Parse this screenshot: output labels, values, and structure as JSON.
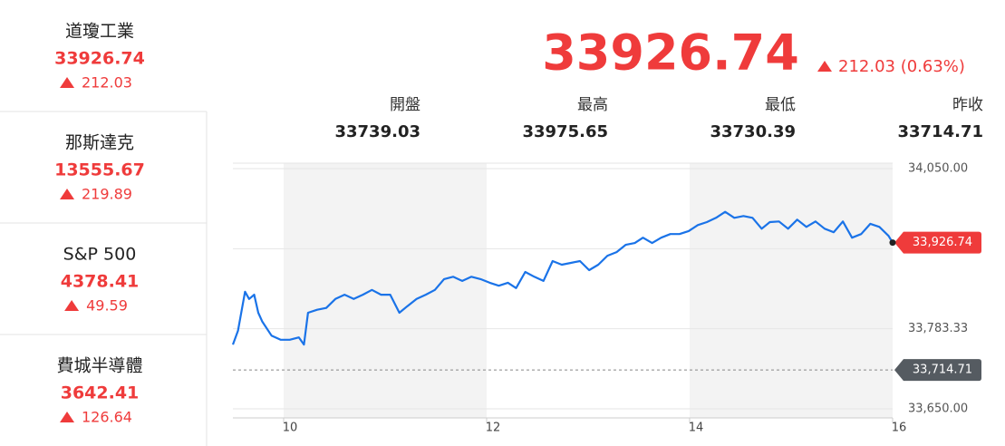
{
  "sidebar": [
    {
      "name": "道瓊工業",
      "price": "33926.74",
      "change": "212.03"
    },
    {
      "name": "那斯達克",
      "price": "13555.67",
      "change": "219.89"
    },
    {
      "name": "S&P 500",
      "price": "4378.41",
      "change": "49.59"
    },
    {
      "name": "費城半導體",
      "price": "3642.41",
      "change": "126.64"
    }
  ],
  "quote": {
    "price": "33926.74",
    "change": "212.03 (0.63%)",
    "stats": [
      {
        "label": "開盤",
        "value": "33739.03"
      },
      {
        "label": "最高",
        "value": "33975.65"
      },
      {
        "label": "最低",
        "value": "33730.39"
      },
      {
        "label": "昨收",
        "value": "33714.71"
      }
    ]
  },
  "chart_data": {
    "type": "line",
    "color": "#1a73e8",
    "x": [
      9.5,
      9.55,
      9.62,
      9.66,
      9.71,
      9.75,
      9.79,
      9.88,
      9.97,
      10.06,
      10.15,
      10.2,
      10.24,
      10.33,
      10.42,
      10.51,
      10.6,
      10.69,
      10.78,
      10.87,
      10.96,
      11.05,
      11.14,
      11.22,
      11.31,
      11.4,
      11.49,
      11.58,
      11.67,
      11.76,
      11.85,
      11.94,
      12.03,
      12.12,
      12.21,
      12.29,
      12.38,
      12.47,
      12.56,
      12.65,
      12.74,
      12.83,
      12.92,
      13.01,
      13.1,
      13.19,
      13.28,
      13.37,
      13.46,
      13.54,
      13.63,
      13.72,
      13.81,
      13.9,
      13.99,
      14.08,
      14.17,
      14.26,
      14.35,
      14.44,
      14.53,
      14.62,
      14.71,
      14.79,
      14.88,
      14.97,
      15.06,
      15.15,
      15.24,
      15.33,
      15.42,
      15.51,
      15.6,
      15.69,
      15.78,
      15.87,
      15.96,
      16
    ],
    "values": [
      33757,
      33780,
      33845,
      33833,
      33840,
      33810,
      33795,
      33772,
      33765,
      33765,
      33769,
      33757,
      33810,
      33815,
      33818,
      33833,
      33840,
      33833,
      33840,
      33848,
      33840,
      33840,
      33810,
      33821,
      33833,
      33840,
      33848,
      33866,
      33870,
      33863,
      33870,
      33866,
      33860,
      33855,
      33860,
      33851,
      33878,
      33870,
      33863,
      33896,
      33890,
      33893,
      33896,
      33881,
      33890,
      33905,
      33911,
      33923,
      33926,
      33935,
      33926,
      33935,
      33941,
      33941,
      33946,
      33956,
      33961,
      33968,
      33978,
      33968,
      33971,
      33968,
      33950,
      33961,
      33962,
      33950,
      33965,
      33953,
      33962,
      33950,
      33944,
      33962,
      33935,
      33941,
      33958,
      33953,
      33938,
      33926.74
    ],
    "xlim": [
      9.5,
      16
    ],
    "xticks": [
      10,
      12,
      14,
      16
    ],
    "ylim": [
      33650,
      34050
    ],
    "yticks": [
      {
        "value": 33650,
        "label": "33,650.00"
      },
      {
        "value": 33783.33,
        "label": "33,783.33"
      },
      {
        "value": 33916.67,
        "label": null
      },
      {
        "value": 34050,
        "label": "34,050.00"
      }
    ],
    "grid": true,
    "last": {
      "value": 33926.74,
      "label": "33,926.74"
    },
    "prev_close": {
      "value": 33714.71,
      "label": "33,714.71"
    }
  }
}
